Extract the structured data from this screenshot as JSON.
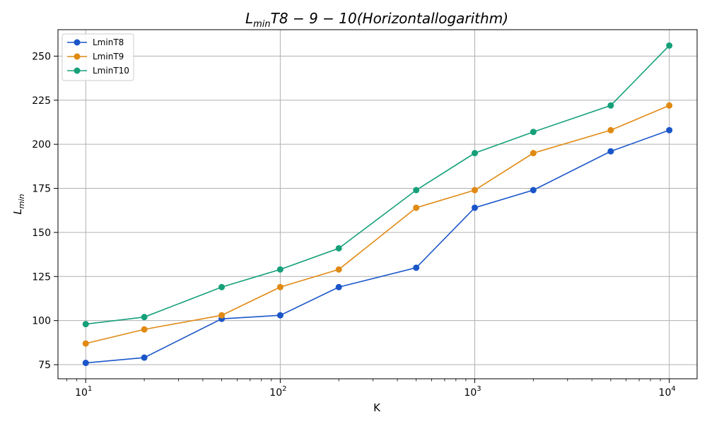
{
  "chart_data": {
    "type": "line",
    "title": "L_{min}T8 − 9 − 10(Horizontallogarithm)",
    "title_parts": {
      "base": "L",
      "sub": "min",
      "rest": "T8 − 9 − 10(",
      "italic": "Horizontallogarithm",
      "close": ")"
    },
    "xlabel": "K",
    "ylabel": {
      "base": "L",
      "sub": "min"
    },
    "xscale": "log",
    "xlim": [
      7.2,
      13900
    ],
    "ylim": [
      67,
      265
    ],
    "xticks": [
      {
        "value": 10,
        "base": "10",
        "exp": "1"
      },
      {
        "value": 100,
        "base": "10",
        "exp": "2"
      },
      {
        "value": 1000,
        "base": "10",
        "exp": "3"
      },
      {
        "value": 10000,
        "base": "10",
        "exp": "4"
      }
    ],
    "yticks": [
      "75",
      "100",
      "125",
      "150",
      "175",
      "200",
      "225",
      "250"
    ],
    "grid": true,
    "legend_position": "top-left",
    "x": [
      10,
      20,
      50,
      100,
      200,
      500,
      1000,
      2000,
      5000,
      10000
    ],
    "series": [
      {
        "name": "LminT8",
        "color": "#1a56c9",
        "values": [
          76,
          79,
          101,
          103,
          119,
          130,
          164,
          174,
          196,
          208
        ]
      },
      {
        "name": "LminT9",
        "color": "#e08a14",
        "values": [
          87,
          95,
          103,
          119,
          129,
          164,
          174,
          195,
          208,
          222
        ]
      },
      {
        "name": "LminT10",
        "color": "#16a07a",
        "values": [
          98,
          102,
          119,
          129,
          141,
          174,
          195,
          207,
          222,
          256
        ]
      }
    ]
  }
}
